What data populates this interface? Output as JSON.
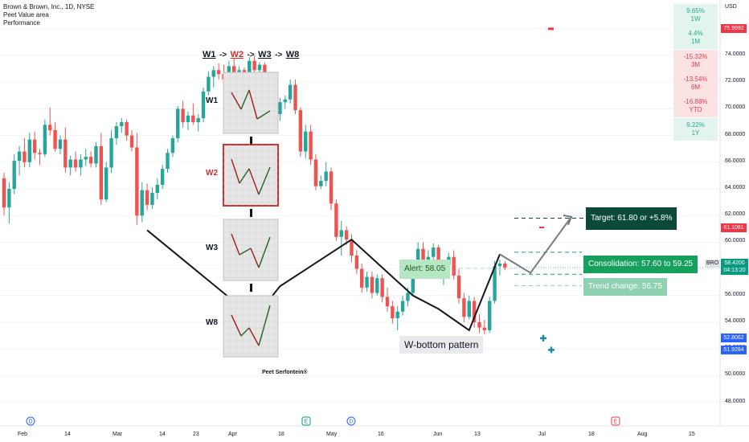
{
  "header": {
    "symbol_line": "Brown & Brown, Inc., 1D, NYSE",
    "indicator_1": "Peet Value area",
    "indicator_2": "Performance"
  },
  "performance": [
    {
      "value": "9.65%",
      "period": "1W",
      "sign": "pos"
    },
    {
      "value": "4.4%",
      "period": "1M",
      "sign": "pos"
    },
    {
      "value": "-15.32%",
      "period": "3M",
      "sign": "neg"
    },
    {
      "value": "-13.54%",
      "period": "6M",
      "sign": "neg"
    },
    {
      "value": "-16.88%",
      "period": "YTD",
      "sign": "neg"
    },
    {
      "value": "9.22%",
      "period": "1Y",
      "sign": "pos"
    }
  ],
  "price_axis": {
    "currency": "USD",
    "ticks": [
      "74.0000",
      "72.0000",
      "70.0000",
      "68.0000",
      "66.0000",
      "64.0000",
      "62.0000",
      "60.0000",
      "58.0000",
      "56.0000",
      "54.0000",
      "52.0000",
      "50.0000",
      "48.0000"
    ],
    "tags": [
      {
        "text": "75.9992",
        "value": 75.9992,
        "color": "#f23645"
      },
      {
        "text": "61.1081",
        "value": 61.1081,
        "color": "#f23645"
      },
      {
        "text": "52.8062",
        "value": 52.8062,
        "color": "#2962ff"
      },
      {
        "text": "51.9284",
        "value": 51.9284,
        "color": "#2962ff"
      }
    ],
    "current": {
      "symbol": "BRO",
      "price": "58.4200",
      "countdown": "04:13:20",
      "value": 58.42,
      "color": "#089981"
    }
  },
  "time_axis": {
    "labels": [
      "Feb",
      "14",
      "Mar",
      "14",
      "23",
      "Apr",
      "18",
      "May",
      "16",
      "Jun",
      "13",
      "Jul",
      "18",
      "Aug",
      "15"
    ],
    "events": [
      {
        "letter": "D",
        "kind": "dividend"
      },
      {
        "letter": "E",
        "kind": "earnings"
      },
      {
        "letter": "D",
        "kind": "dividend"
      },
      {
        "letter": "E",
        "kind": "earnings"
      }
    ]
  },
  "annotations": {
    "pattern_title": [
      "W1",
      "W2",
      "W3",
      "W8"
    ],
    "pattern_arrow": "->",
    "w_labels": [
      "W1",
      "W2",
      "W3",
      "W8"
    ],
    "author": "Peet Serfontein®",
    "alert": "Alert: 58.05",
    "pattern_name": "W-bottom pattern",
    "target": "Target: 61.80 or +5.8%",
    "consolidation": "Consolidation: 57.60 to 59.25",
    "trend_change": "Trend change: 56.75"
  },
  "colors": {
    "up": "#26a69a",
    "down": "#ef5350",
    "highlight": "#d32f2f",
    "target_bg": "#0b4a3b",
    "consolidation_bg": "#16a05d",
    "trend_bg": "#8ed1b0",
    "alert_bg": "#b7e6c2"
  },
  "chart_data": {
    "type": "candlestick",
    "ylim": [
      47,
      77
    ],
    "levels": {
      "alert": 58.05,
      "target": 61.8,
      "consolidation_low": 57.6,
      "consolidation_high": 59.25,
      "trend_change": 56.75
    },
    "candles": [
      [
        64.8,
        65.2,
        62.0,
        62.6
      ],
      [
        62.6,
        64.5,
        61.4,
        64.0
      ],
      [
        64.0,
        66.6,
        63.6,
        66.1
      ],
      [
        66.1,
        67.2,
        65.0,
        66.8
      ],
      [
        66.8,
        67.8,
        65.6,
        66.0
      ],
      [
        66.0,
        68.2,
        65.6,
        67.7
      ],
      [
        67.7,
        68.3,
        66.2,
        66.7
      ],
      [
        66.7,
        67.0,
        65.8,
        66.6
      ],
      [
        66.6,
        69.2,
        66.4,
        68.8
      ],
      [
        68.8,
        70.1,
        68.0,
        68.4
      ],
      [
        68.4,
        69.0,
        66.8,
        67.0
      ],
      [
        67.0,
        68.0,
        66.6,
        67.7
      ],
      [
        67.7,
        68.6,
        65.2,
        65.6
      ],
      [
        65.6,
        66.5,
        65.0,
        66.2
      ],
      [
        66.2,
        66.8,
        65.3,
        65.6
      ],
      [
        65.6,
        66.6,
        65.0,
        66.2
      ],
      [
        66.2,
        67.0,
        65.7,
        66.4
      ],
      [
        66.4,
        66.8,
        65.6,
        65.9
      ],
      [
        65.9,
        67.5,
        65.6,
        67.2
      ],
      [
        67.2,
        68.2,
        62.8,
        63.2
      ],
      [
        63.2,
        66.0,
        63.0,
        65.6
      ],
      [
        65.6,
        68.4,
        65.2,
        67.8
      ],
      [
        67.8,
        69.0,
        67.3,
        68.7
      ],
      [
        68.7,
        69.3,
        68.2,
        69.0
      ],
      [
        69.0,
        69.2,
        67.6,
        68.0
      ],
      [
        68.0,
        68.4,
        66.8,
        67.1
      ],
      [
        67.1,
        68.2,
        61.3,
        62.0
      ],
      [
        62.0,
        64.5,
        61.5,
        63.9
      ],
      [
        63.9,
        64.4,
        62.4,
        62.8
      ],
      [
        62.8,
        64.1,
        62.5,
        63.7
      ],
      [
        63.7,
        64.8,
        63.2,
        64.3
      ],
      [
        64.3,
        65.8,
        64.0,
        65.5
      ],
      [
        65.5,
        67.0,
        65.2,
        66.7
      ],
      [
        66.7,
        68.0,
        66.4,
        67.8
      ],
      [
        67.8,
        70.2,
        67.5,
        70.0
      ],
      [
        70.0,
        70.6,
        68.6,
        69.0
      ],
      [
        69.0,
        69.8,
        68.4,
        69.5
      ],
      [
        69.5,
        70.4,
        68.8,
        69.0
      ],
      [
        69.0,
        69.6,
        68.3,
        69.3
      ],
      [
        69.3,
        71.6,
        69.0,
        71.3
      ],
      [
        71.3,
        72.8,
        71.0,
        72.4
      ],
      [
        72.4,
        73.2,
        71.6,
        72.9
      ],
      [
        72.9,
        73.4,
        72.2,
        72.6
      ],
      [
        72.6,
        73.3,
        71.8,
        72.2
      ],
      [
        72.2,
        73.6,
        71.9,
        73.2
      ],
      [
        73.2,
        73.8,
        72.1,
        72.4
      ],
      [
        72.4,
        73.2,
        71.6,
        72.9
      ],
      [
        72.9,
        73.1,
        72.0,
        72.3
      ],
      [
        72.3,
        73.9,
        72.1,
        73.6
      ],
      [
        73.6,
        74.0,
        72.6,
        72.9
      ],
      [
        72.9,
        73.5,
        72.4,
        73.3
      ],
      [
        73.3,
        73.5,
        71.2,
        71.6
      ],
      [
        71.6,
        72.4,
        71.0,
        72.1
      ],
      [
        72.1,
        72.4,
        69.2,
        69.6
      ],
      [
        69.6,
        70.8,
        69.1,
        70.5
      ],
      [
        70.5,
        71.0,
        70.0,
        70.7
      ],
      [
        70.7,
        72.2,
        70.4,
        71.8
      ],
      [
        71.8,
        72.2,
        69.6,
        69.9
      ],
      [
        69.9,
        70.1,
        66.4,
        66.8
      ],
      [
        66.8,
        68.8,
        66.3,
        68.3
      ],
      [
        68.3,
        68.8,
        65.8,
        66.2
      ],
      [
        66.2,
        66.6,
        63.9,
        64.2
      ],
      [
        64.2,
        65.0,
        64.0,
        64.6
      ],
      [
        64.6,
        66.0,
        64.2,
        65.3
      ],
      [
        65.3,
        65.6,
        62.4,
        62.9
      ],
      [
        62.9,
        63.2,
        60.1,
        60.4
      ],
      [
        60.4,
        61.6,
        59.0,
        60.9
      ],
      [
        60.9,
        61.2,
        59.8,
        60.2
      ],
      [
        60.2,
        60.6,
        58.5,
        59.0
      ],
      [
        59.0,
        59.4,
        57.6,
        58.0
      ],
      [
        58.0,
        58.4,
        56.2,
        56.6
      ],
      [
        56.6,
        57.8,
        56.3,
        57.4
      ],
      [
        57.4,
        57.8,
        55.8,
        56.2
      ],
      [
        56.2,
        57.6,
        56.0,
        57.3
      ],
      [
        57.3,
        57.6,
        55.5,
        55.9
      ],
      [
        55.9,
        56.6,
        54.8,
        55.2
      ],
      [
        55.2,
        55.6,
        53.9,
        54.3
      ],
      [
        54.3,
        55.2,
        53.4,
        54.8
      ],
      [
        54.8,
        56.0,
        54.5,
        55.6
      ],
      [
        55.6,
        56.6,
        55.2,
        56.2
      ],
      [
        56.2,
        58.4,
        56.0,
        58.0
      ],
      [
        58.0,
        60.0,
        57.8,
        59.5
      ],
      [
        59.5,
        60.0,
        58.0,
        58.3
      ],
      [
        58.3,
        59.4,
        57.6,
        58.9
      ],
      [
        58.9,
        59.9,
        58.6,
        59.6
      ],
      [
        59.6,
        59.8,
        57.4,
        57.7
      ],
      [
        57.7,
        58.6,
        56.8,
        58.3
      ],
      [
        58.3,
        59.2,
        57.9,
        58.9
      ],
      [
        58.9,
        59.4,
        57.2,
        57.5
      ],
      [
        57.5,
        58.0,
        55.4,
        55.8
      ],
      [
        55.8,
        56.2,
        54.0,
        54.4
      ],
      [
        54.4,
        56.0,
        54.2,
        55.6
      ],
      [
        55.6,
        55.9,
        53.6,
        54.0
      ],
      [
        54.0,
        54.6,
        53.2,
        53.6
      ],
      [
        53.6,
        54.2,
        53.1,
        53.4
      ],
      [
        53.4,
        55.9,
        53.2,
        55.6
      ],
      [
        55.6,
        58.6,
        55.4,
        58.2
      ],
      [
        58.2,
        58.7,
        57.5,
        58.4
      ],
      [
        58.4,
        58.6,
        57.9,
        58.1
      ]
    ],
    "w_path": [
      [
        [
          28,
          60.9
        ],
        [
          49,
          54.3
        ],
        [
          54,
          56.7
        ],
        [
          68,
          60.2
        ],
        [
          80,
          56.0
        ],
        [
          85,
          55.0
        ],
        [
          91,
          53.4
        ],
        [
          97,
          59.1
        ]
      ]
    ],
    "projection": [
      [
        97,
        59.1
      ],
      [
        103,
        57.7
      ],
      [
        111,
        61.9
      ]
    ]
  }
}
